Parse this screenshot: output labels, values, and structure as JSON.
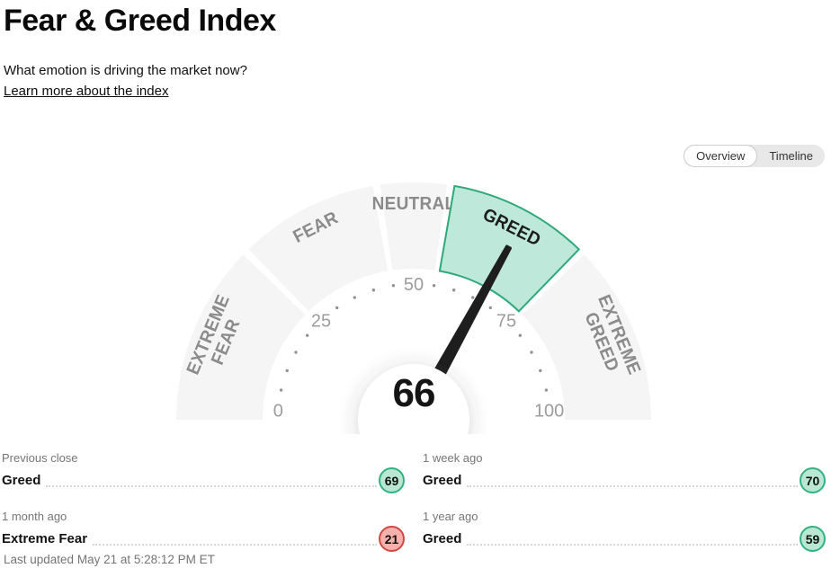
{
  "page": {
    "title": "Fear & Greed Index",
    "subtitle": "What emotion is driving the market now?",
    "link": "Learn more about the index",
    "last_updated": "Last updated May 21 at 5:28:12 PM ET"
  },
  "toggle": {
    "options": [
      "Overview",
      "Timeline"
    ],
    "active": "Overview"
  },
  "chart_data": {
    "type": "gauge",
    "title": "Fear & Greed Index",
    "value": 66,
    "value_label": "66",
    "min": 0,
    "max": 100,
    "tick_labels": [
      0,
      25,
      50,
      75,
      100
    ],
    "minor_tick_step": 5,
    "segments": [
      {
        "label": "EXTREME FEAR",
        "lines": [
          "EXTREME",
          "FEAR"
        ],
        "from": 0,
        "to": 25,
        "active": false
      },
      {
        "label": "FEAR",
        "lines": [
          "FEAR"
        ],
        "from": 25,
        "to": 45,
        "active": false
      },
      {
        "label": "NEUTRAL",
        "lines": [
          "NEUTRAL"
        ],
        "from": 45,
        "to": 55,
        "active": false
      },
      {
        "label": "GREED",
        "lines": [
          "GREED"
        ],
        "from": 55,
        "to": 75,
        "active": true
      },
      {
        "label": "EXTREME GREED",
        "lines": [
          "EXTREME",
          "GREED"
        ],
        "from": 75,
        "to": 100,
        "active": false
      }
    ],
    "colors": {
      "segment": "#f5f5f5",
      "active_fill": "#bee9da",
      "active_stroke": "#2fa87a",
      "label": "#8b8b8b",
      "active_label": "#1c1c1c",
      "tick": "#9c9c9c",
      "dot": "#929292",
      "needle": "#1e1e1e",
      "value": "#141414"
    }
  },
  "history": {
    "items": [
      {
        "period": "Previous close",
        "label": "Greed",
        "value": "69",
        "sentiment": "greed"
      },
      {
        "period": "1 week ago",
        "label": "Greed",
        "value": "70",
        "sentiment": "greed"
      },
      {
        "period": "1 month ago",
        "label": "Extreme Fear",
        "value": "21",
        "sentiment": "fear"
      },
      {
        "period": "1 year ago",
        "label": "Greed",
        "value": "59",
        "sentiment": "greed"
      }
    ],
    "badge_colors": {
      "greed": {
        "fill": "#b9e7d4",
        "stroke": "#35b283"
      },
      "fear": {
        "fill": "#f6b1ad",
        "stroke": "#d04a45"
      }
    }
  }
}
